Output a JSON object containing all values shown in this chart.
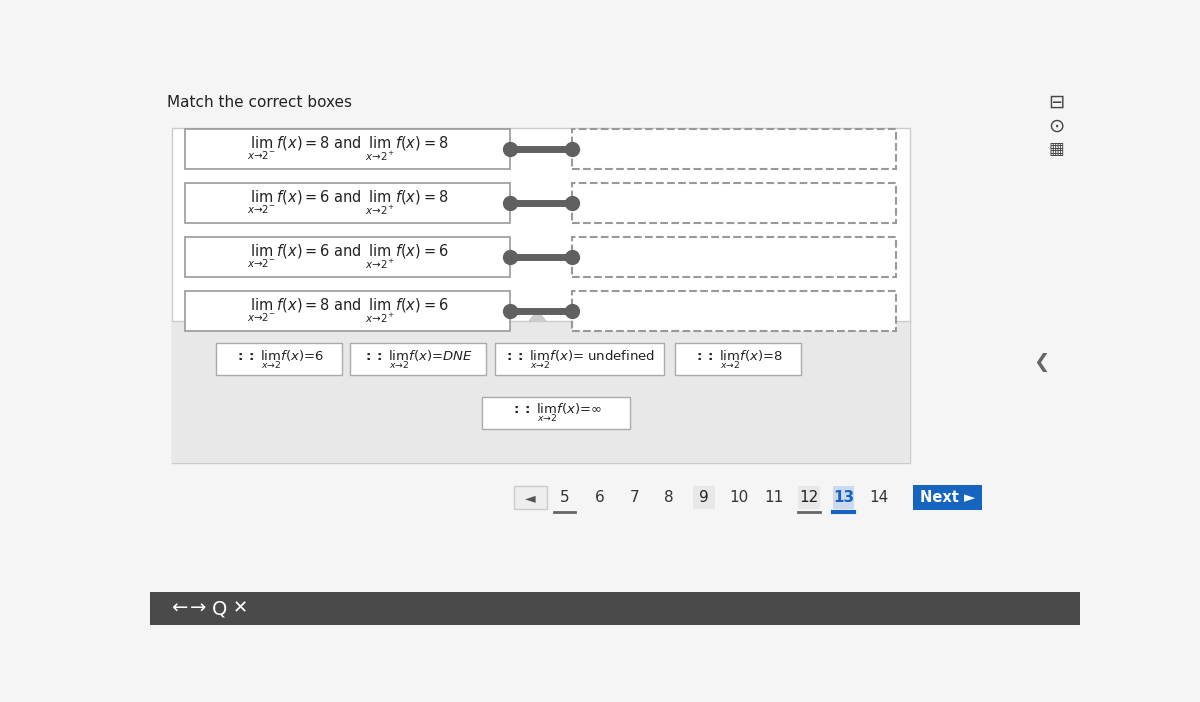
{
  "title": "Match the correct boxes",
  "bg_color": "#f5f5f5",
  "main_panel_bg": "#ffffff",
  "main_panel_border": "#cccccc",
  "bottom_panel_bg": "#e8e8e8",
  "left_box_texts": [
    "$\\lim_{x\\to2^-} f(x) = 8$ and $\\lim_{x\\to2^+} f(x) = 8$",
    "$\\lim_{x\\to2^-} f(x) = 6$ and $\\lim_{x\\to2^+} f(x) = 8$",
    "$\\lim_{x\\to2^-} f(x) = 6$ and $\\lim_{x\\to2^+} f(x) = 6$",
    "$\\lim_{x\\to2^-} f(x) = 8$ and $\\lim_{x\\to2^+} f(x) = 6$"
  ],
  "chip_row1": [
    "$\\mathbf{::}$ $\\lim_{x\\to2} f(x) = 6$",
    "$\\mathbf{::}$ $\\lim_{x\\to2} f(x) = DNE$",
    "$\\mathbf{::}$ $\\lim_{x\\to2} f(x) =$ undefined",
    "$\\mathbf{::}$ $\\lim_{x\\to2} f(x) = 8$"
  ],
  "chip_row2": "$\\mathbf{::}$ $\\lim_{x\\to2} f(x) = \\infty$",
  "page_numbers": [
    "5",
    "6",
    "7",
    "8",
    "9",
    "10",
    "11",
    "12",
    "13",
    "14"
  ],
  "current_page": "13",
  "nav_button_color": "#1565c0",
  "toolbar_bg": "#4a4a4a",
  "connector_color": "#606060",
  "left_box_border": "#999999",
  "chip_border": "#aaaaaa"
}
